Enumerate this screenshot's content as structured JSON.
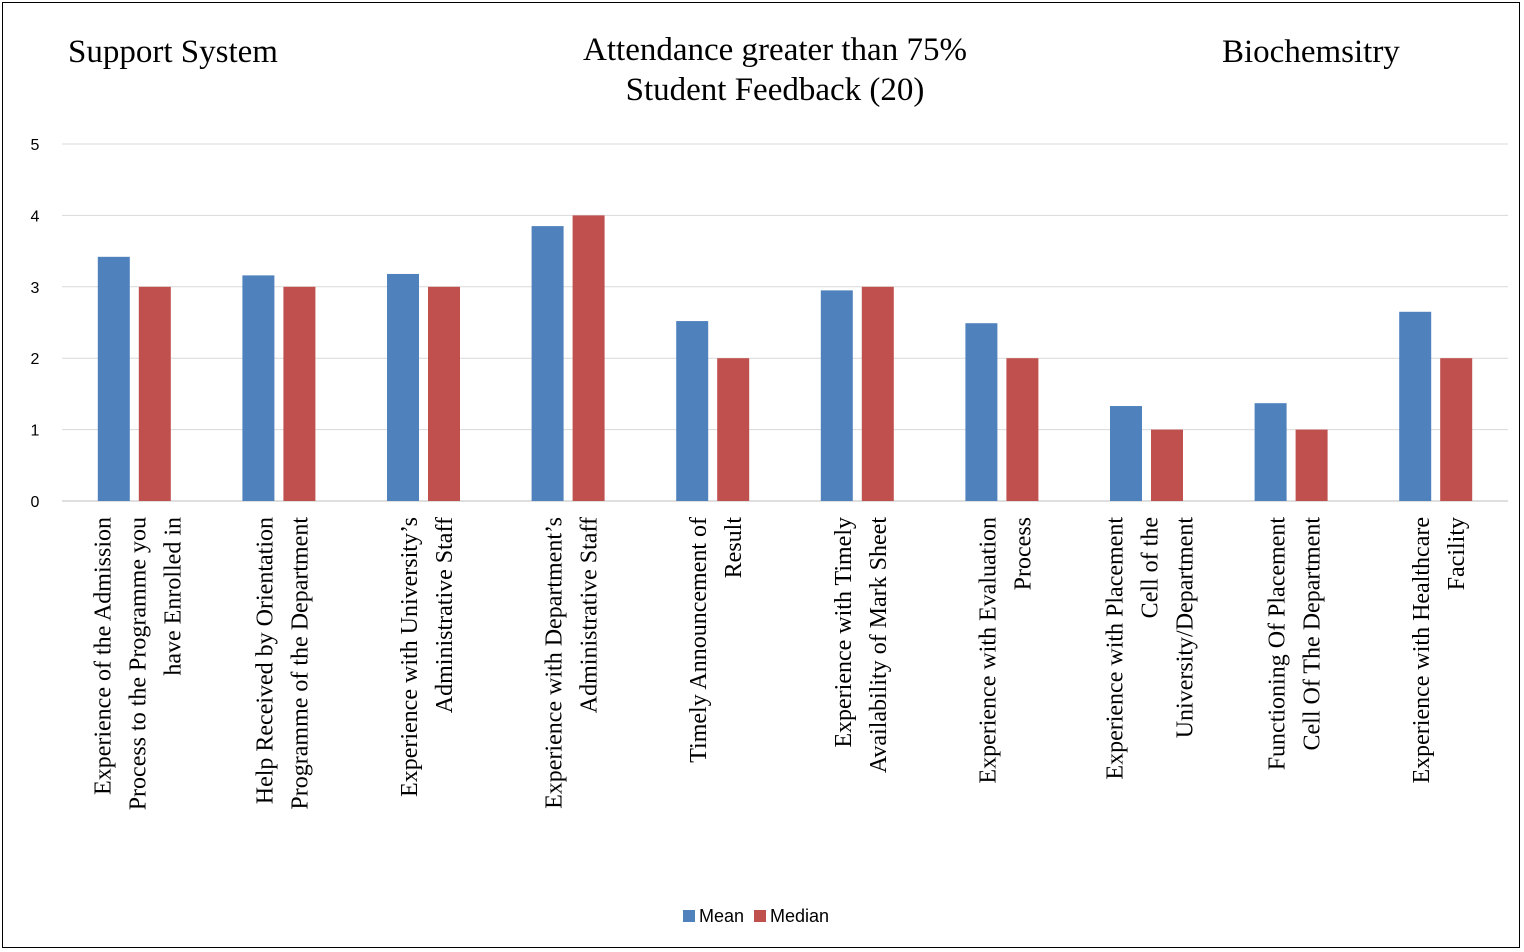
{
  "header": {
    "left_title": "Support System",
    "center_title_line1": "Attendance greater than 75%",
    "center_title_line2": "Student Feedback (20)",
    "right_title": "Biochemsitry"
  },
  "colors": {
    "mean": "#4f81bd",
    "median": "#c0504d",
    "grid": "#d9d9d9",
    "axis": "#bfbfbf"
  },
  "chart_data": {
    "type": "bar",
    "title": "Attendance greater than 75% Student Feedback (20)",
    "ylim": [
      0,
      5
    ],
    "yticks": [
      0,
      1,
      2,
      3,
      4,
      5
    ],
    "grid": true,
    "legend_position": "bottom",
    "categories": [
      [
        "Experience of the Admission",
        "Process to the Programme you",
        "have Enrolled in"
      ],
      [
        "Help Received by Orientation",
        "Programme of the Department"
      ],
      [
        "Experience with University’s",
        "Administrative Staff"
      ],
      [
        "Experience with Department’s",
        "Administrative Staff"
      ],
      [
        "Timely Announcement of",
        "Result"
      ],
      [
        "Experience with Timely",
        "Availability of Mark Sheet"
      ],
      [
        "Experience with Evaluation",
        "Process"
      ],
      [
        "Experience with Placement",
        "Cell of the",
        "University/Department"
      ],
      [
        "Functioning Of Placement",
        "Cell Of The Department"
      ],
      [
        "Experience with Healthcare",
        "Facility"
      ]
    ],
    "series": [
      {
        "name": "Mean",
        "values": [
          3.42,
          3.16,
          3.18,
          3.85,
          2.52,
          2.95,
          2.49,
          1.33,
          1.37,
          2.65
        ]
      },
      {
        "name": "Median",
        "values": [
          3,
          3,
          3,
          4,
          2,
          3,
          2,
          1,
          1,
          2
        ]
      }
    ]
  }
}
